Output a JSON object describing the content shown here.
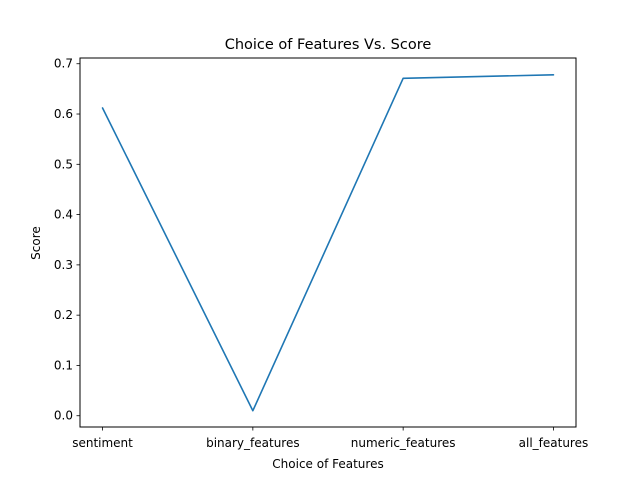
{
  "chart_data": {
    "type": "line",
    "title": "Choice of Features Vs. Score",
    "xlabel": "Choice of Features",
    "ylabel": "Score",
    "categories": [
      "sentiment",
      "binary_features",
      "numeric_features",
      "all_features"
    ],
    "series": [
      {
        "values": [
          0.612,
          0.01,
          0.671,
          0.678
        ],
        "color": "#1f77b4"
      }
    ],
    "ylim": [
      -0.0224,
      0.7114
    ],
    "yticks": [
      "0.0",
      "0.1",
      "0.2",
      "0.3",
      "0.4",
      "0.5",
      "0.6",
      "0.7"
    ],
    "grid": false,
    "legend": "none"
  }
}
